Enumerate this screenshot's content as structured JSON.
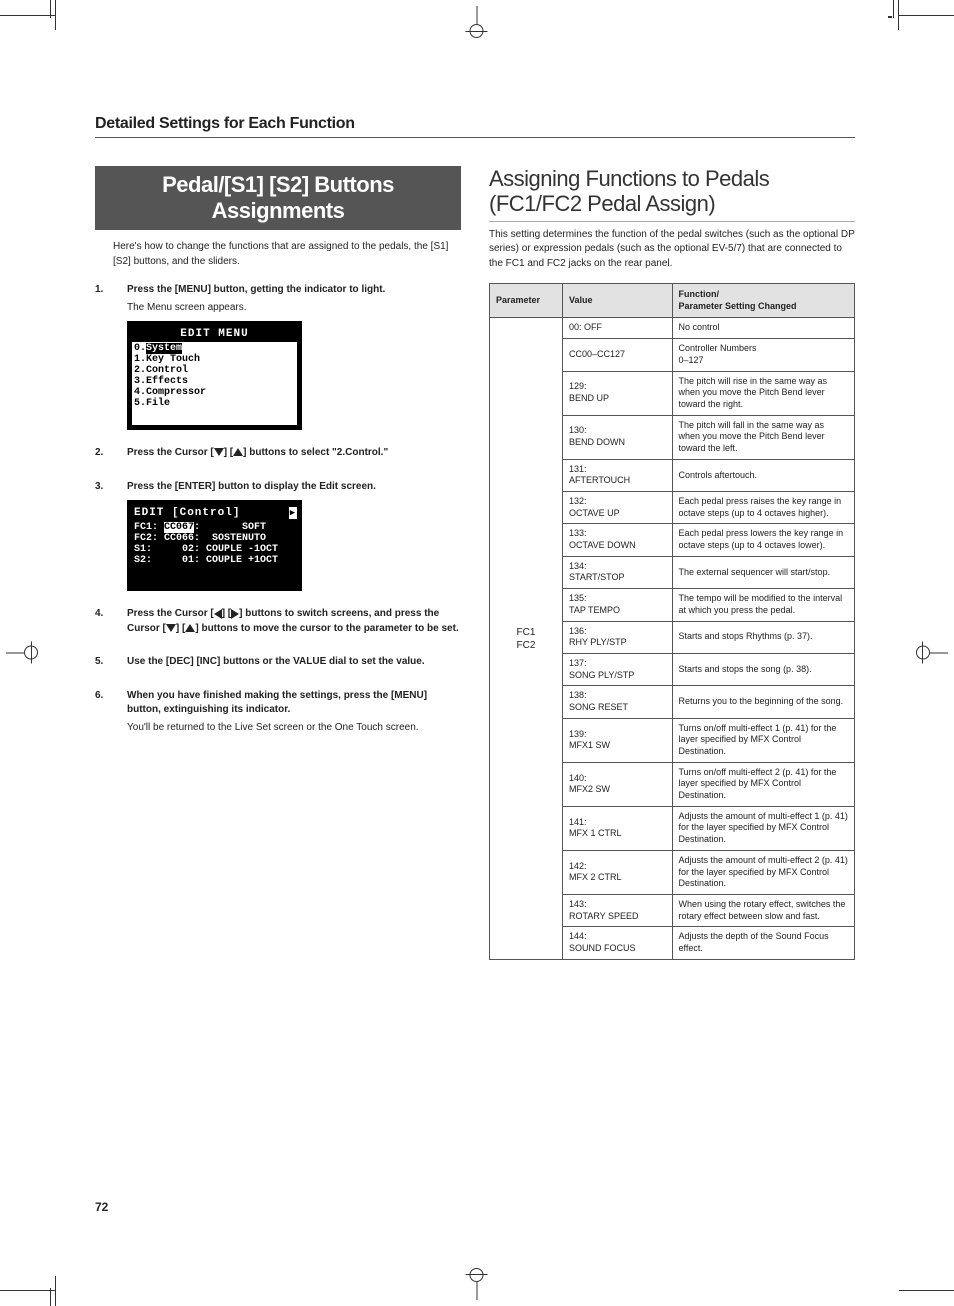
{
  "page_number": "72",
  "section_header": "Detailed Settings for Each Function",
  "left": {
    "banner": "Pedal/[S1] [S2] Buttons Assignments",
    "intro": "Here's how to change the functions that are assigned to the pedals, the [S1] [S2] buttons, and the sliders.",
    "steps": [
      {
        "num": "1.",
        "title": "Press the [MENU] button, getting the indicator to light.",
        "sub": "The Menu screen appears."
      },
      {
        "num": "2.",
        "title_parts": [
          "Press the Cursor [",
          "down",
          "] [",
          "up",
          "] buttons to select \"2.Control.\""
        ]
      },
      {
        "num": "3.",
        "title": "Press the [ENTER] button to display the Edit screen."
      },
      {
        "num": "4.",
        "title_parts": [
          "Press the Cursor [",
          "left",
          "] [",
          "right",
          "] buttons to switch screens, and press the Cursor [",
          "down",
          "] [",
          "up",
          "] buttons to move the cursor to the parameter to be set."
        ]
      },
      {
        "num": "5.",
        "title": "Use the [DEC] [INC] buttons or the VALUE dial to set the value."
      },
      {
        "num": "6.",
        "title": "When you have finished making the settings, press the [MENU] button, extinguishing its indicator.",
        "sub": "You'll be returned to the Live Set screen or the One Touch screen."
      }
    ],
    "lcd1": {
      "header": "EDIT MENU",
      "lines": [
        "0.System",
        "1.Key Touch",
        "2.Control",
        "3.Effects",
        "4.Compressor",
        "5.File"
      ],
      "highlight_index": 0
    },
    "lcd2": {
      "header": "EDIT [Control]",
      "lines": [
        "FC1: CC067:       SOFT",
        "FC2: CC066:  SOSTENUTO",
        "S1:     02: COUPLE -1OCT",
        "S2:     01: COUPLE +1OCT"
      ],
      "highlight_text": "CC067"
    }
  },
  "right": {
    "heading_line1": "Assigning Functions to Pedals",
    "heading_line2": "(FC1/FC2 Pedal Assign)",
    "intro": "This setting determines the function of the pedal switches (such as the optional DP series) or expression pedals (such as the optional EV-5/7) that are connected to the FC1 and FC2 jacks on the rear panel.",
    "table": {
      "headers": [
        "Parameter",
        "Value",
        "Function/\nParameter Setting Changed"
      ],
      "param_label": "FC1\nFC2",
      "rows": [
        {
          "value": "00: OFF",
          "func": "No control"
        },
        {
          "value": "CC00–CC127",
          "func": "Controller Numbers\n0–127"
        },
        {
          "value": "129:\nBEND UP",
          "func": "The pitch will rise in the same way as when you move the Pitch Bend lever toward the right."
        },
        {
          "value": "130:\nBEND DOWN",
          "func": "The pitch will fall in the same way as when you move the Pitch Bend lever toward the left."
        },
        {
          "value": "131:\nAFTERTOUCH",
          "func": "Controls aftertouch."
        },
        {
          "value": "132:\nOCTAVE UP",
          "func": "Each pedal press raises the key range in octave steps (up to 4 octaves higher)."
        },
        {
          "value": "133:\nOCTAVE DOWN",
          "func": "Each pedal press lowers the key range in octave steps (up to 4 octaves lower)."
        },
        {
          "value": "134:\nSTART/STOP",
          "func": "The external sequencer will start/stop."
        },
        {
          "value": "135:\nTAP TEMPO",
          "func": "The tempo will be modified to the interval at which you press the pedal."
        },
        {
          "value": "136:\nRHY PLY/STP",
          "func": "Starts and stops Rhythms (p. 37)."
        },
        {
          "value": "137:\nSONG PLY/STP",
          "func": "Starts and stops the song (p. 38)."
        },
        {
          "value": "138:\nSONG RESET",
          "func": "Returns you to the beginning of the song."
        },
        {
          "value": "139:\nMFX1 SW",
          "func": "Turns on/off multi-effect 1 (p. 41) for the layer specified by MFX Control Destination."
        },
        {
          "value": "140:\nMFX2 SW",
          "func": "Turns on/off multi-effect 2 (p. 41) for the layer specified by MFX Control Destination."
        },
        {
          "value": "141:\nMFX 1 CTRL",
          "func": "Adjusts the amount of multi-effect 1 (p. 41) for the layer specified by MFX Control Destination."
        },
        {
          "value": "142:\nMFX 2 CTRL",
          "func": "Adjusts the amount of multi-effect 2 (p. 41) for the layer specified by MFX Control Destination."
        },
        {
          "value": "143:\nROTARY SPEED",
          "func": "When using the rotary effect, switches the rotary effect between slow and fast."
        },
        {
          "value": "144:\nSOUND FOCUS",
          "func": "Adjusts the depth of the Sound Focus effect."
        }
      ]
    }
  }
}
